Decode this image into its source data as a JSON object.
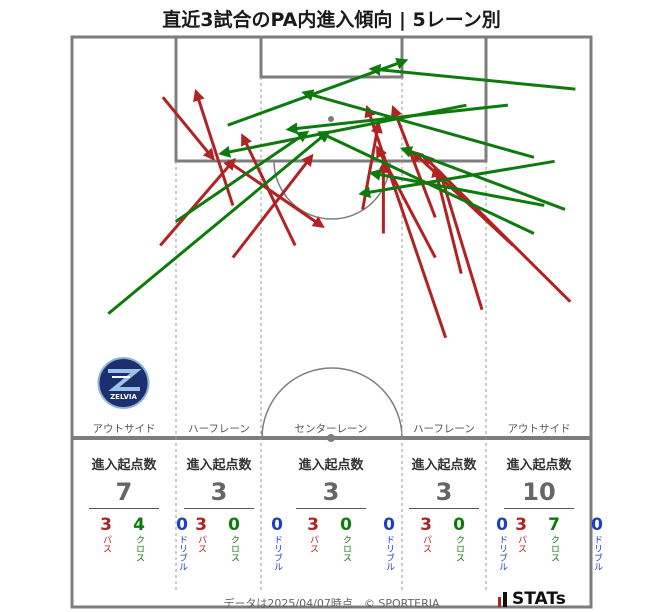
{
  "title": "直近3試合のPA内進入傾向 | 5レーン別",
  "lanes": [
    {
      "label": "アウトサイド",
      "stat_title": "進入起点数",
      "total": "7",
      "pass": "3",
      "cross": "4",
      "dribble": "0"
    },
    {
      "label": "ハーフレーン",
      "stat_title": "進入起点数",
      "total": "3",
      "pass": "3",
      "cross": "0",
      "dribble": "0"
    },
    {
      "label": "センターレーン",
      "stat_title": "進入起点数",
      "total": "3",
      "pass": "3",
      "cross": "0",
      "dribble": "0"
    },
    {
      "label": "ハーフレーン",
      "stat_title": "進入起点数",
      "total": "3",
      "pass": "3",
      "cross": "0",
      "dribble": "0"
    },
    {
      "label": "アウトサイド",
      "stat_title": "進入起点数",
      "total": "10",
      "pass": "3",
      "cross": "7",
      "dribble": "0"
    }
  ],
  "breakdown_labels": {
    "pass": "パス",
    "cross": "クロス",
    "dribble": "ドリブル"
  },
  "colors": {
    "pass": "#b22222",
    "cross": "#0e7a0e",
    "dribble": "#1f3fbf"
  },
  "footer": "データは2025/04/07時点　© SPORTERIA",
  "brand": "STATs",
  "logo_text": "ZELVIA",
  "chart_data": {
    "type": "arrow-map",
    "note_units": "pitch coordinates: x = 0 (left touchline) .. 100 (right touchline), y = 0 (goal line) .. 100 (halfway line)",
    "series": [
      {
        "name": "パス",
        "color": "#b22222",
        "arrows": [
          [
            17.5,
            15,
            27,
            30
          ],
          [
            17,
            52,
            31,
            31
          ],
          [
            30,
            31,
            48,
            47
          ],
          [
            31,
            42,
            24,
            14
          ],
          [
            31,
            55,
            46,
            30
          ],
          [
            43,
            52,
            33,
            25
          ],
          [
            60,
            49,
            60,
            32
          ],
          [
            56,
            43,
            59,
            22
          ],
          [
            70,
            45,
            62,
            18
          ],
          [
            70,
            55,
            59,
            28
          ],
          [
            75,
            59,
            70,
            33
          ],
          [
            72,
            75,
            57,
            18
          ],
          [
            79,
            68,
            71,
            34
          ],
          [
            85,
            52,
            66,
            29
          ],
          [
            96,
            66,
            68,
            30
          ]
        ]
      },
      {
        "name": "クロス",
        "color": "#0e7a0e",
        "arrows": [
          [
            7,
            69,
            49,
            24
          ],
          [
            20,
            46,
            45,
            24
          ],
          [
            30,
            22,
            64,
            6
          ],
          [
            76,
            17,
            29,
            29
          ],
          [
            84,
            17,
            42,
            23
          ],
          [
            89,
            30,
            45,
            14
          ],
          [
            89,
            49,
            48,
            24
          ],
          [
            91,
            42,
            58,
            34
          ],
          [
            93,
            31,
            56,
            39
          ],
          [
            95,
            43,
            64,
            28
          ],
          [
            97,
            13,
            58,
            8
          ]
        ]
      }
    ]
  }
}
